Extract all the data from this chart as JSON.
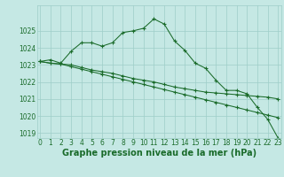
{
  "title": "Graphe pression niveau de la mer (hPa)",
  "xlabel_hours": [
    0,
    1,
    2,
    3,
    4,
    5,
    6,
    7,
    8,
    9,
    10,
    11,
    12,
    13,
    14,
    15,
    16,
    17,
    18,
    19,
    20,
    21,
    22,
    23
  ],
  "line1": [
    1023.2,
    1023.3,
    1023.1,
    1023.8,
    1024.3,
    1024.3,
    1024.1,
    1024.3,
    1024.9,
    1025.0,
    1025.15,
    1025.7,
    1025.4,
    1024.4,
    1023.85,
    1023.1,
    1022.8,
    1022.1,
    1021.5,
    1021.5,
    1021.3,
    1020.5,
    1019.8,
    1018.7
  ],
  "line2": [
    1023.2,
    1023.1,
    1023.05,
    1023.0,
    1022.85,
    1022.7,
    1022.6,
    1022.5,
    1022.35,
    1022.2,
    1022.1,
    1022.0,
    1021.85,
    1021.7,
    1021.6,
    1021.5,
    1021.4,
    1021.35,
    1021.3,
    1021.25,
    1021.2,
    1021.15,
    1021.1,
    1021.0
  ],
  "line3": [
    1023.2,
    1023.1,
    1023.05,
    1022.9,
    1022.75,
    1022.6,
    1022.45,
    1022.3,
    1022.15,
    1022.0,
    1021.85,
    1021.7,
    1021.55,
    1021.4,
    1021.25,
    1021.1,
    1020.95,
    1020.8,
    1020.65,
    1020.5,
    1020.35,
    1020.2,
    1020.05,
    1019.9
  ],
  "ylim_min": 1018.7,
  "ylim_max": 1026.5,
  "yticks": [
    1019,
    1020,
    1021,
    1022,
    1023,
    1024,
    1025
  ],
  "bg_color": "#c5e8e4",
  "grid_color": "#9ecec8",
  "line_color": "#1a6b2a",
  "marker": "+",
  "title_fontsize": 7.0,
  "tick_fontsize": 5.5
}
